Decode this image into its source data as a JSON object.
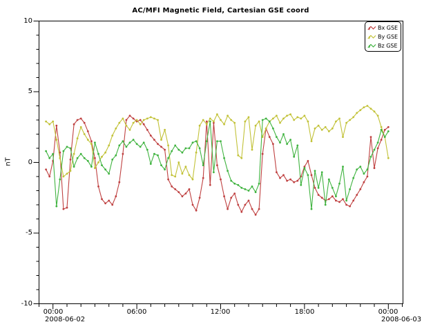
{
  "chart_data": {
    "type": "line",
    "title": "AC/MFI  Magnetic Field, Cartesian GSE coord",
    "ylabel": "nT",
    "ylim": [
      -10,
      10
    ],
    "yticks_major": [
      -10,
      -5,
      0,
      5,
      10
    ],
    "ytick_minor_step": 1,
    "xlim_hours": [
      -1,
      25.05
    ],
    "xticks_major_hours": [
      0,
      6,
      12,
      18,
      24
    ],
    "xtick_labels": [
      "00:00",
      "06:00",
      "12:00",
      "18:00",
      "00:00"
    ],
    "xtick_minor_step_hours": 1,
    "x_date_labels": [
      {
        "hour": 0,
        "label": "2008-06-02"
      },
      {
        "hour": 24,
        "label": "2008-06-03"
      }
    ],
    "legend_position": "top-right",
    "grid": false,
    "time_start_hours": -0.5,
    "time_step_hours": 0.25,
    "series": [
      {
        "name": "Bx GSE",
        "color": "#bf4040",
        "values": [
          -0.5,
          -1.0,
          0.1,
          2.6,
          0.7,
          -3.3,
          -3.2,
          0.2,
          2.7,
          3.0,
          3.1,
          2.8,
          2.2,
          1.5,
          0.3,
          -1.7,
          -2.6,
          -2.9,
          -2.7,
          -3.0,
          -2.4,
          -1.4,
          0.6,
          3.0,
          3.3,
          3.1,
          2.9,
          3.0,
          2.7,
          2.3,
          1.9,
          1.6,
          1.3,
          1.1,
          0.9,
          -1.2,
          -1.7,
          -1.9,
          -2.1,
          -2.4,
          -2.2,
          -1.9,
          -3.0,
          -3.4,
          -2.5,
          -1.1,
          2.9,
          -1.6,
          2.8,
          -0.2,
          -1.2,
          -2.4,
          -3.3,
          -2.5,
          -2.2,
          -3.0,
          -3.5,
          -3.0,
          -2.7,
          -3.3,
          -3.7,
          -3.3,
          0.6,
          2.4,
          1.8,
          1.3,
          -0.7,
          -1.1,
          -0.9,
          -1.3,
          -1.2,
          -1.4,
          -1.3,
          -1.0,
          -0.3,
          0.1,
          -0.9,
          -1.8,
          -2.3,
          -2.5,
          -2.7,
          -2.6,
          -2.4,
          -2.7,
          -2.8,
          -2.6,
          -3.0,
          -3.1,
          -2.7,
          -2.3,
          -1.9,
          -1.4,
          -1.0,
          1.8,
          -0.4,
          1.0,
          1.6,
          2.3,
          2.5
        ]
      },
      {
        "name": "By GSE",
        "color": "#c2c238",
        "values": [
          2.9,
          2.7,
          2.9,
          1.6,
          0.3,
          -1.0,
          -0.8,
          -0.6,
          0.6,
          1.7,
          2.5,
          2.0,
          1.6,
          1.3,
          -0.4,
          0.0,
          0.4,
          0.7,
          1.2,
          1.9,
          2.4,
          2.8,
          3.1,
          2.6,
          2.3,
          2.8,
          3.0,
          2.7,
          3.0,
          3.1,
          3.2,
          3.1,
          3.0,
          1.6,
          2.3,
          1.2,
          -0.9,
          -1.0,
          0.0,
          -0.8,
          -0.3,
          -0.9,
          -1.2,
          0.7,
          2.6,
          3.0,
          2.7,
          3.1,
          2.9,
          3.4,
          3.0,
          2.7,
          3.3,
          3.0,
          2.8,
          0.5,
          0.3,
          2.9,
          3.2,
          0.9,
          2.6,
          2.9,
          1.8,
          2.4,
          2.9,
          3.1,
          3.3,
          2.8,
          3.1,
          3.3,
          3.4,
          3.0,
          3.2,
          3.1,
          3.3,
          2.9,
          1.5,
          2.4,
          2.6,
          2.3,
          2.5,
          2.2,
          2.4,
          2.9,
          3.1,
          1.8,
          2.8,
          3.0,
          3.2,
          3.5,
          3.7,
          3.9,
          4.0,
          3.8,
          3.6,
          3.3,
          2.5,
          1.8,
          0.3
        ]
      },
      {
        "name": "Bz GSE",
        "color": "#3fb33f",
        "values": [
          0.8,
          0.3,
          0.6,
          -3.1,
          -1.2,
          0.8,
          1.1,
          1.0,
          -0.3,
          0.3,
          0.6,
          0.3,
          0.1,
          -0.3,
          1.4,
          0.6,
          -0.2,
          -0.5,
          -0.8,
          0.2,
          0.5,
          1.2,
          1.5,
          1.1,
          1.4,
          1.6,
          1.3,
          1.1,
          1.4,
          0.9,
          -0.1,
          0.6,
          0.5,
          -0.2,
          -0.5,
          0.3,
          0.8,
          1.2,
          0.9,
          0.7,
          1.0,
          1.0,
          1.4,
          1.5,
          1.0,
          -0.2,
          1.5,
          2.9,
          -0.7,
          1.5,
          1.5,
          0.3,
          -0.6,
          -1.3,
          -1.5,
          -1.6,
          -1.8,
          -1.9,
          -2.0,
          -1.7,
          -2.1,
          -1.5,
          3.0,
          3.1,
          2.9,
          2.4,
          1.8,
          1.4,
          2.0,
          1.3,
          1.6,
          0.4,
          1.2,
          -1.6,
          -0.4,
          -0.9,
          -3.3,
          -0.6,
          -1.8,
          -0.7,
          -3.0,
          -1.2,
          -1.8,
          -2.4,
          -1.5,
          -0.3,
          -2.7,
          -1.9,
          -1.1,
          -0.5,
          -0.3,
          -0.8,
          -0.5,
          0.4,
          0.9,
          1.4,
          2.3,
          1.8,
          2.2
        ]
      }
    ]
  }
}
